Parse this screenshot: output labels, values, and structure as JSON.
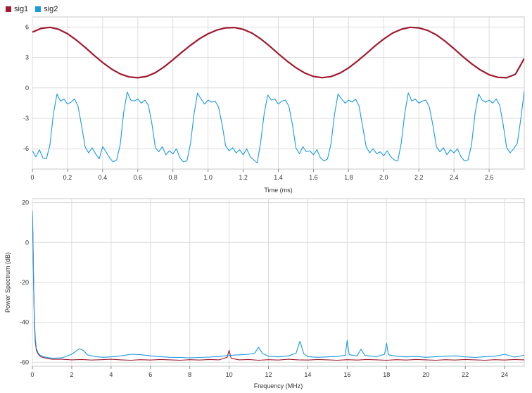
{
  "legend": {
    "items": [
      {
        "label": "sig1",
        "color": "#a0192e"
      },
      {
        "label": "sig2",
        "color": "#1b9ae0"
      }
    ]
  },
  "chart_data": [
    {
      "type": "line",
      "title": "",
      "xlabel": "Time (ms)",
      "ylabel": "",
      "xlim": [
        0,
        2.8
      ],
      "ylim": [
        -8,
        7
      ],
      "x_ticks": [
        0,
        0.2,
        0.4,
        0.6,
        0.8,
        1.0,
        1.2,
        1.4,
        1.6,
        1.8,
        2.0,
        2.2,
        2.4,
        2.6
      ],
      "x_tick_labels": [
        "0",
        "0.2",
        "0.4",
        "0.6",
        "0.8",
        "1.0",
        "1.2",
        "1.4",
        "1.6",
        "1.8",
        "2.0",
        "2.2",
        "2.4",
        "2.6"
      ],
      "y_ticks": [
        6,
        3,
        0,
        -3,
        -6
      ],
      "y_tick_labels": [
        "6",
        "3",
        "0",
        "-3",
        "-6"
      ],
      "grid": true,
      "series": [
        {
          "name": "sig1",
          "color": "#a0192e",
          "x": [
            0,
            0.05,
            0.1,
            0.15,
            0.2,
            0.25,
            0.3,
            0.35,
            0.4,
            0.45,
            0.5,
            0.55,
            0.6,
            0.65,
            0.7,
            0.75,
            0.8,
            0.85,
            0.9,
            0.95,
            1.0,
            1.05,
            1.1,
            1.15,
            1.2,
            1.25,
            1.3,
            1.35,
            1.4,
            1.45,
            1.5,
            1.55,
            1.6,
            1.65,
            1.7,
            1.75,
            1.8,
            1.85,
            1.9,
            1.95,
            2.0,
            2.05,
            2.1,
            2.15,
            2.2,
            2.25,
            2.3,
            2.35,
            2.4,
            2.45,
            2.5,
            2.55,
            2.6,
            2.65,
            2.7,
            2.75,
            2.8
          ],
          "values": [
            5.5,
            5.87,
            5.97,
            5.78,
            5.34,
            4.72,
            4.0,
            3.23,
            2.5,
            1.87,
            1.38,
            1.08,
            1.0,
            1.13,
            1.5,
            2.07,
            2.77,
            3.5,
            4.2,
            4.83,
            5.33,
            5.7,
            5.92,
            5.95,
            5.77,
            5.4,
            4.83,
            4.13,
            3.37,
            2.64,
            1.99,
            1.47,
            1.13,
            1.01,
            1.12,
            1.45,
            1.97,
            2.63,
            3.37,
            4.13,
            4.82,
            5.4,
            5.78,
            5.97,
            5.92,
            5.67,
            5.23,
            4.6,
            3.87,
            3.1,
            2.38,
            1.77,
            1.3,
            1.04,
            1.0,
            1.35,
            2.9
          ]
        },
        {
          "name": "sig2",
          "color": "#1b9ae0",
          "x": [
            0.0,
            0.02,
            0.04,
            0.06,
            0.08,
            0.1,
            0.12,
            0.14,
            0.16,
            0.18,
            0.2,
            0.22,
            0.24,
            0.26,
            0.28,
            0.3,
            0.32,
            0.34,
            0.36,
            0.38,
            0.4,
            0.42,
            0.44,
            0.46,
            0.48,
            0.5,
            0.52,
            0.54,
            0.56,
            0.58,
            0.6,
            0.62,
            0.64,
            0.66,
            0.68,
            0.7,
            0.72,
            0.74,
            0.76,
            0.78,
            0.8,
            0.82,
            0.84,
            0.86,
            0.88,
            0.9,
            0.92,
            0.94,
            0.96,
            0.98,
            1.0,
            1.02,
            1.04,
            1.06,
            1.08,
            1.1,
            1.12,
            1.14,
            1.16,
            1.18,
            1.2,
            1.22,
            1.24,
            1.26,
            1.28,
            1.3,
            1.32,
            1.34,
            1.36,
            1.38,
            1.4,
            1.42,
            1.44,
            1.46,
            1.48,
            1.5,
            1.52,
            1.54,
            1.56,
            1.58,
            1.6,
            1.62,
            1.64,
            1.66,
            1.68,
            1.7,
            1.72,
            1.74,
            1.76,
            1.78,
            1.8,
            1.82,
            1.84,
            1.86,
            1.88,
            1.9,
            1.92,
            1.94,
            1.96,
            1.98,
            2.0,
            2.02,
            2.04,
            2.06,
            2.08,
            2.1,
            2.12,
            2.14,
            2.16,
            2.18,
            2.2,
            2.22,
            2.24,
            2.26,
            2.28,
            2.3,
            2.32,
            2.34,
            2.36,
            2.38,
            2.4,
            2.42,
            2.44,
            2.46,
            2.48,
            2.5,
            2.52,
            2.54,
            2.56,
            2.58,
            2.6,
            2.62,
            2.64,
            2.66,
            2.68,
            2.7,
            2.72,
            2.74,
            2.76,
            2.78,
            2.8
          ],
          "values": [
            -6.2,
            -6.8,
            -6.1,
            -6.9,
            -7.0,
            -5.6,
            -2.5,
            -0.6,
            -1.3,
            -1.1,
            -1.6,
            -1.4,
            -1.1,
            -1.8,
            -3.7,
            -5.8,
            -6.4,
            -5.9,
            -6.5,
            -7.0,
            -5.8,
            -6.3,
            -6.9,
            -7.3,
            -7.1,
            -5.6,
            -2.4,
            -0.4,
            -1.2,
            -1.3,
            -1.1,
            -1.5,
            -1.2,
            -1.7,
            -3.5,
            -5.9,
            -6.3,
            -5.8,
            -6.6,
            -6.2,
            -6.5,
            -6.0,
            -6.9,
            -7.3,
            -7.2,
            -5.5,
            -2.6,
            -0.5,
            -1.1,
            -1.6,
            -1.2,
            -1.4,
            -1.3,
            -1.9,
            -3.6,
            -5.7,
            -6.2,
            -5.9,
            -6.4,
            -6.1,
            -6.6,
            -6.0,
            -6.8,
            -7.1,
            -7.4,
            -5.3,
            -2.5,
            -0.7,
            -1.2,
            -1.1,
            -1.6,
            -1.3,
            -1.2,
            -1.8,
            -3.6,
            -5.9,
            -6.5,
            -5.8,
            -6.3,
            -6.2,
            -6.6,
            -6.1,
            -6.9,
            -7.2,
            -7.0,
            -5.5,
            -2.6,
            -0.6,
            -1.1,
            -1.5,
            -1.2,
            -1.4,
            -1.1,
            -1.8,
            -3.8,
            -5.8,
            -6.4,
            -6.0,
            -6.5,
            -6.3,
            -6.7,
            -6.2,
            -6.8,
            -7.1,
            -7.2,
            -5.4,
            -2.5,
            -0.5,
            -1.3,
            -1.1,
            -1.5,
            -1.3,
            -1.2,
            -1.9,
            -3.7,
            -5.8,
            -6.3,
            -5.9,
            -6.6,
            -6.1,
            -6.4,
            -6.0,
            -6.8,
            -7.2,
            -7.1,
            -5.6,
            -2.5,
            -0.6,
            -1.2,
            -1.4,
            -1.2,
            -1.5,
            -1.1,
            -1.7,
            -3.6,
            -5.9,
            -6.4,
            -6.0,
            -5.5,
            -3.1,
            -0.3
          ]
        }
      ]
    },
    {
      "type": "line",
      "title": "",
      "xlabel": "Frequency (MHz)",
      "ylabel": "Power Spectrum (dB)",
      "xlim": [
        0,
        25
      ],
      "ylim": [
        -62,
        22
      ],
      "x_ticks": [
        0,
        2,
        4,
        6,
        8,
        10,
        12,
        14,
        16,
        18,
        20,
        22,
        24
      ],
      "x_tick_labels": [
        "0",
        "2",
        "4",
        "6",
        "8",
        "10",
        "12",
        "14",
        "16",
        "18",
        "20",
        "22",
        "24"
      ],
      "y_ticks": [
        20,
        0,
        -20,
        -40,
        -60
      ],
      "y_tick_labels": [
        "20",
        "0",
        "-20",
        "-40",
        "-60"
      ],
      "grid": true,
      "series": [
        {
          "name": "sig1",
          "color": "#a0192e",
          "x": [
            0.0,
            0.03,
            0.06,
            0.1,
            0.15,
            0.2,
            0.3,
            0.4,
            0.5,
            0.7,
            1.0,
            1.5,
            2.0,
            2.5,
            3.0,
            3.5,
            4.0,
            4.5,
            5.0,
            5.5,
            6.0,
            6.5,
            7.0,
            7.5,
            8.0,
            8.5,
            9.0,
            9.5,
            9.9,
            10.0,
            10.1,
            10.5,
            11.0,
            11.5,
            12.0,
            12.5,
            13.0,
            13.5,
            14.0,
            14.5,
            15.0,
            15.5,
            16.0,
            16.5,
            17.0,
            17.5,
            18.0,
            18.5,
            19.0,
            19.5,
            20.0,
            20.5,
            21.0,
            21.5,
            22.0,
            22.5,
            23.0,
            23.5,
            24.0,
            24.5,
            25.0
          ],
          "values": [
            14,
            2,
            -20,
            -40,
            -50,
            -54,
            -56,
            -57,
            -57.5,
            -58,
            -58.5,
            -58.5,
            -58.8,
            -58.6,
            -58.9,
            -58.7,
            -58.5,
            -58.8,
            -59,
            -58.7,
            -58.9,
            -58.6,
            -58.8,
            -59,
            -58.7,
            -58.9,
            -58.6,
            -58.8,
            -57.5,
            -54,
            -58,
            -58.8,
            -58.6,
            -59,
            -58.7,
            -58.9,
            -58.5,
            -58.8,
            -58.9,
            -58.6,
            -58.8,
            -59,
            -58.7,
            -58.9,
            -58.6,
            -58.8,
            -59,
            -58.7,
            -58.9,
            -58.6,
            -58.8,
            -59,
            -58.7,
            -58.9,
            -58.6,
            -58.8,
            -59,
            -58.7,
            -58.9,
            -58.6,
            -58.8
          ]
        },
        {
          "name": "sig2",
          "color": "#1b9ae0",
          "x": [
            0.0,
            0.03,
            0.06,
            0.1,
            0.15,
            0.2,
            0.3,
            0.4,
            0.5,
            0.7,
            1.0,
            1.5,
            2.0,
            2.2,
            2.4,
            2.6,
            2.8,
            3.2,
            3.6,
            4.0,
            4.5,
            5.0,
            5.5,
            6.0,
            6.5,
            7.0,
            7.5,
            8.0,
            8.5,
            9.0,
            9.5,
            10.0,
            10.5,
            11.0,
            11.3,
            11.5,
            11.7,
            12.0,
            12.5,
            13.0,
            13.4,
            13.6,
            13.8,
            14.0,
            14.5,
            15.0,
            15.5,
            15.9,
            16.0,
            16.1,
            16.5,
            16.7,
            16.9,
            17.5,
            17.9,
            18.0,
            18.1,
            18.5,
            19.0,
            19.5,
            20.0,
            20.5,
            21.0,
            21.5,
            22.0,
            22.5,
            23.0,
            23.5,
            24.0,
            24.5,
            25.0
          ],
          "values": [
            16,
            4,
            -18,
            -38,
            -48,
            -53,
            -55.5,
            -56.5,
            -57,
            -57.5,
            -58,
            -57.8,
            -56,
            -54.5,
            -53.2,
            -54.2,
            -56.3,
            -57.2,
            -57.5,
            -57.3,
            -56.8,
            -56,
            -56.2,
            -56.8,
            -57.2,
            -57.5,
            -57.6,
            -57.8,
            -57.6,
            -57.4,
            -57.1,
            -56.6,
            -56.3,
            -56,
            -55.4,
            -52.5,
            -55.6,
            -57,
            -57.3,
            -56.8,
            -55.5,
            -49.5,
            -55.8,
            -57.2,
            -57.5,
            -57.3,
            -57.1,
            -56.5,
            -49,
            -56.2,
            -56.8,
            -53.5,
            -56.6,
            -57.2,
            -56,
            -50.5,
            -56.3,
            -57,
            -57.3,
            -57.1,
            -57.5,
            -57.2,
            -57,
            -56.8,
            -57.3,
            -57.6,
            -57.2,
            -57,
            -56,
            -57.4,
            -56.5
          ]
        }
      ]
    }
  ]
}
